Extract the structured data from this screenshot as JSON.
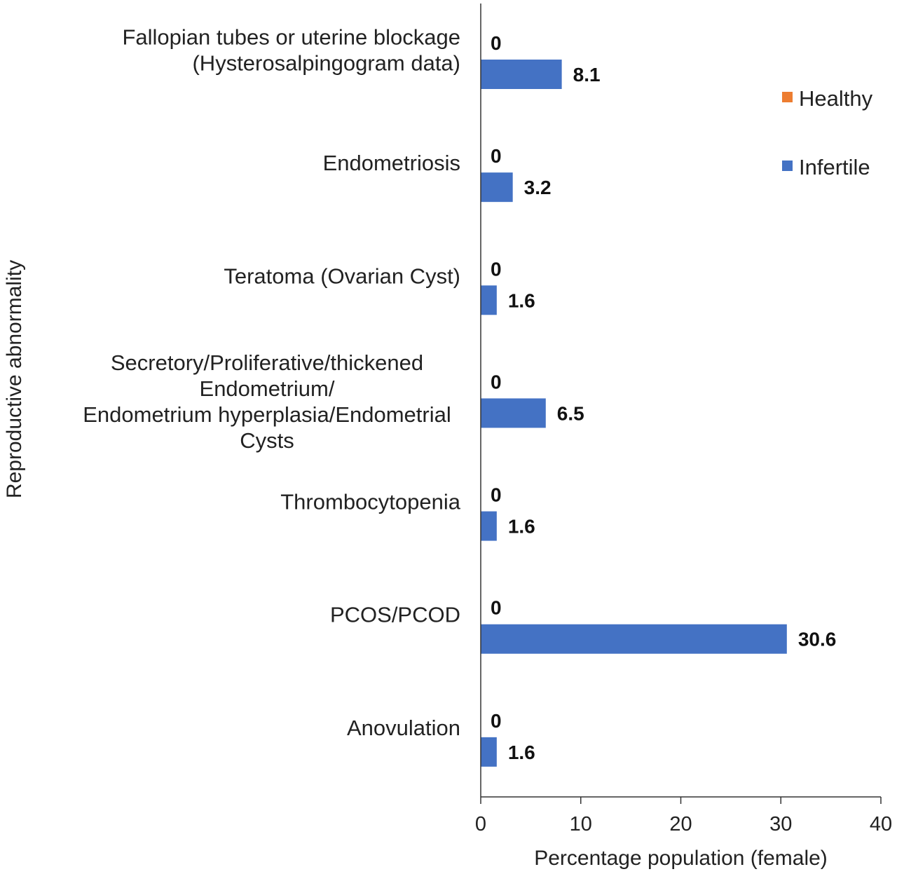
{
  "chart_data": {
    "type": "bar",
    "orientation": "horizontal",
    "categories": [
      [
        "Fallopian tubes or uterine blockage",
        "(Hysterosalpingogram data)"
      ],
      [
        "Endometriosis"
      ],
      [
        "Teratoma (Ovarian Cyst)"
      ],
      [
        "Secretory/Proliferative/thickened",
        "Endometrium/",
        "Endometrium hyperplasia/Endometrial",
        "Cysts"
      ],
      [
        "Thrombocytopenia"
      ],
      [
        "PCOS/PCOD"
      ],
      [
        "Anovulation"
      ]
    ],
    "series": [
      {
        "name": "Healthy",
        "color": "#ED7D31",
        "values": [
          0,
          0,
          0,
          0,
          0,
          0,
          0
        ],
        "labels": [
          "0",
          "0",
          "0",
          "0",
          "0",
          "0",
          "0"
        ]
      },
      {
        "name": "Infertile",
        "color": "#4472C4",
        "values": [
          8.1,
          3.2,
          1.6,
          6.5,
          1.6,
          30.6,
          1.6
        ],
        "labels": [
          "8.1",
          "3.2",
          "1.6",
          "6.5",
          "1.6",
          "30.6",
          "1.6"
        ]
      }
    ],
    "xlabel": "Percentage population (female)",
    "ylabel": "Reproductive abnormality",
    "xlim": [
      0,
      40
    ],
    "xticks": [
      "0",
      "10",
      "20",
      "30",
      "40"
    ],
    "legend": {
      "position": "right",
      "order": [
        "Healthy",
        "Infertile"
      ]
    },
    "grid": false
  }
}
